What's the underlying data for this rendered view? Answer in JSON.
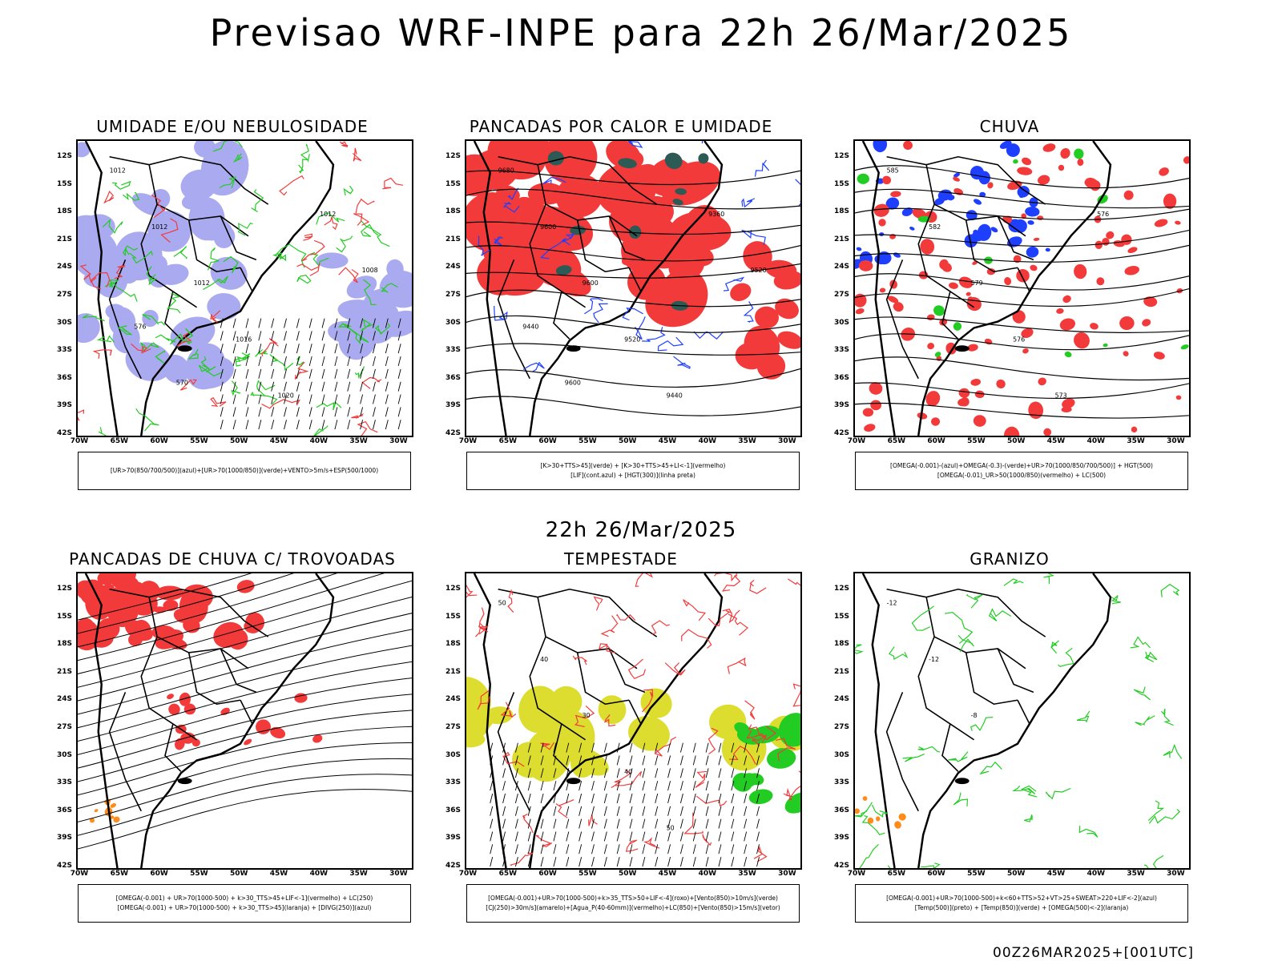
{
  "header": {
    "title": "Previsao WRF-INPE  para 22h 26/Mar/2025"
  },
  "middle": {
    "title": "22h 26/Mar/2025"
  },
  "footer": {
    "run_label": "00Z26MAR2025+[001UTC]"
  },
  "axes": {
    "lat_labels": [
      "12S",
      "15S",
      "18S",
      "21S",
      "24S",
      "27S",
      "30S",
      "33S",
      "36S",
      "39S",
      "42S"
    ],
    "lon_labels": [
      "70W",
      "65W",
      "60W",
      "55W",
      "50W",
      "45W",
      "40W",
      "35W",
      "30W"
    ]
  },
  "colors": {
    "red": "#f23a3a",
    "green": "#22cc22",
    "blue": "#1f3fff",
    "lavender": "#aaaaf0",
    "darkgreen": "#2e5a55",
    "yellow": "#dddd30",
    "orange": "#ff8c1a"
  },
  "panels": [
    {
      "title": "UMIDADE E/OU NEBULOSIDADE",
      "caption": [
        "[UR>70(850/700/500)](azul)+[UR>70(1000/850)](verde)+VENTO>5m/s+ESP(500/1000)"
      ],
      "labels": [
        "1012",
        "1012",
        "1012",
        "1016",
        "1020",
        "1012",
        "1008",
        "576",
        "570"
      ]
    },
    {
      "title": "PANCADAS POR CALOR E UMIDADE",
      "caption": [
        "[K>30+TTS>45](verde)  +  [K>30+TTS>45+LI<-1](vermelho)",
        "[LIF](cont.azul)  +  [HGT(300)](linha preta)"
      ],
      "labels": [
        "9680",
        "9600",
        "9600",
        "9520",
        "9440",
        "9360",
        "9520",
        "9440",
        "9600"
      ]
    },
    {
      "title": "CHUVA",
      "caption": [
        "[OMEGA(-0.001)-(azul)+OMEGA(-0.3)-(verde)+UR>70(1000/850/700/500)]  +  HGT(500)",
        "[OMEGA(-0.01)_UR>50(1000/850)(vermelho)  +  LC(500)"
      ],
      "labels": [
        "585",
        "582",
        "579",
        "576",
        "573",
        "576"
      ]
    },
    {
      "title": "PANCADAS DE CHUVA C/ TROVOADAS",
      "caption": [
        "[OMEGA(-0.001)  +  UR>70(1000-500)  +  k>30_TTS>45+LIF<-1](vermelho)  +  LC(250)",
        "[OMEGA(-0.001)  +  UR>70(1000-500)  +  k>30_TTS>45](laranja)  +  [DIVG(250)](azul)"
      ],
      "labels": []
    },
    {
      "title": "TEMPESTADE",
      "caption": [
        "[OMEGA(-0.001)+UR>70(1000-500)+k>35_TTS>50+LIF<-4](roxo)+[Vento(850)>10m/s](verde)",
        "[CJ(250)>30m/s](amarelo)+[Agua_P(40-60mm)](vermelho)+LC(850)+[Vento(850)>15m/s](vetor)"
      ],
      "labels": [
        "50",
        "40",
        "30",
        "40",
        "50"
      ]
    },
    {
      "title": "GRANIZO",
      "caption": [
        "[OMEGA(-0.001)+UR>70(1000-500)+k<60+TTS>52+VT>25+SWEAT>220+LIF<-2](azul)",
        "[Temp(500)](preto)  +  [Temp(850)](verde)  +  [OMEGA(500)<-2](laranja)"
      ],
      "labels": [
        "-12",
        "-12",
        "-8"
      ]
    }
  ]
}
